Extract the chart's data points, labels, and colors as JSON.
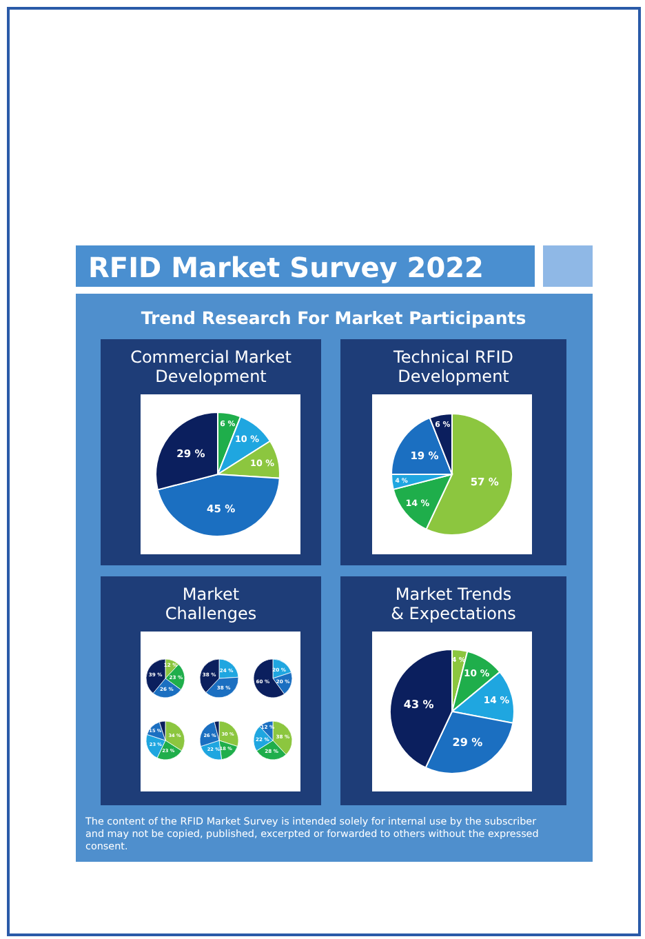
{
  "chart_data": [
    {
      "type": "other",
      "title": "RFID Market Survey 2022",
      "subtitle": "Trend Research For Market Participants",
      "annotations": [
        "The content of the RFID Market Survey is intended solely for internal use by the subscriber and may not be copied, published, excerpted or forwarded to others without the expressed consent."
      ]
    },
    {
      "type": "pie",
      "title": "Commercial Market Development",
      "categories": [
        null,
        null,
        null,
        null,
        null
      ],
      "values": [
        6,
        10,
        10,
        45,
        29
      ],
      "value_labels": [
        "6 %",
        "10 %",
        "10 %",
        "45 %",
        "29 %"
      ],
      "colors": [
        "#1fae4b",
        "#1fa6e0",
        "#8cc63f",
        "#1b6fc1",
        "#0b1f5e"
      ]
    },
    {
      "type": "pie",
      "title": "Technical RFID Development",
      "categories": [
        null,
        null,
        null,
        null,
        null
      ],
      "values": [
        57,
        14,
        4,
        19,
        6
      ],
      "value_labels": [
        "57 %",
        "14 %",
        "4 %",
        "19 %",
        "6 %"
      ],
      "colors": [
        "#8cc63f",
        "#1fae4b",
        "#1fa6e0",
        "#1b6fc1",
        "#0b1f5e"
      ]
    },
    {
      "type": "pie",
      "title": "Market Challenges",
      "categories": [
        null,
        null,
        null,
        null
      ],
      "values": [
        12,
        23,
        26,
        39
      ],
      "value_labels": [
        "12 %",
        "23 %",
        "26 %",
        "39 %"
      ],
      "colors": [
        "#8cc63f",
        "#1fae4b",
        "#1b6fc1",
        "#0b1f5e"
      ]
    },
    {
      "type": "pie",
      "categories": [
        null,
        null,
        null
      ],
      "values": [
        24,
        38,
        38
      ],
      "value_labels": [
        "24 %",
        "38 %",
        "38 %"
      ],
      "colors": [
        "#1fa6e0",
        "#1b6fc1",
        "#0b1f5e"
      ]
    },
    {
      "type": "pie",
      "categories": [
        null,
        null,
        null
      ],
      "values": [
        20,
        20,
        60
      ],
      "value_labels": [
        "20 %",
        "20 %",
        "60 %"
      ],
      "colors": [
        "#1fa6e0",
        "#1b6fc1",
        "#0b1f5e"
      ]
    },
    {
      "type": "pie",
      "categories": [
        null,
        null,
        null,
        null,
        null
      ],
      "values": [
        34,
        23,
        23,
        15,
        5
      ],
      "value_labels": [
        "34 %",
        "23 %",
        "23 %",
        "15 %",
        null
      ],
      "colors": [
        "#8cc63f",
        "#1fae4b",
        "#1fa6e0",
        "#1b6fc1",
        "#0b1f5e"
      ]
    },
    {
      "type": "pie",
      "categories": [
        null,
        null,
        null,
        null,
        null
      ],
      "values": [
        30,
        18,
        22,
        26,
        4
      ],
      "value_labels": [
        "30 %",
        "18 %",
        "22 %",
        "26 %",
        null
      ],
      "colors": [
        "#8cc63f",
        "#1fae4b",
        "#1fa6e0",
        "#1b6fc1",
        "#0b1f5e"
      ]
    },
    {
      "type": "pie",
      "categories": [
        null,
        null,
        null,
        null
      ],
      "values": [
        38,
        28,
        22,
        12
      ],
      "value_labels": [
        "38 %",
        "28 %",
        "22 %",
        "12 %"
      ],
      "colors": [
        "#8cc63f",
        "#1fae4b",
        "#1fa6e0",
        "#1b6fc1"
      ]
    },
    {
      "type": "pie",
      "title": "Market Trends & Expectations",
      "categories": [
        null,
        null,
        null,
        null,
        null
      ],
      "values": [
        4,
        10,
        14,
        29,
        43
      ],
      "value_labels": [
        "4 %",
        "10 %",
        "14 %",
        "29 %",
        "43 %"
      ],
      "colors": [
        "#8cc63f",
        "#1fae4b",
        "#1fa6e0",
        "#1b6fc1",
        "#0b1f5e"
      ]
    }
  ]
}
